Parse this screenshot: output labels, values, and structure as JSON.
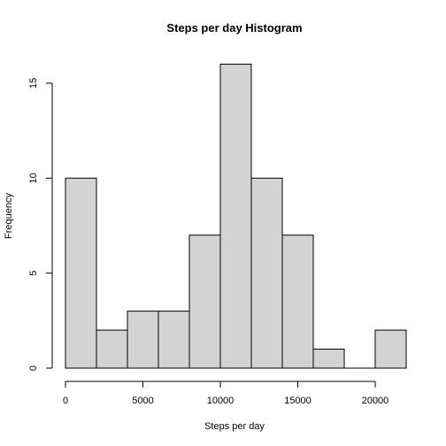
{
  "chart_data": {
    "type": "bar",
    "title": "Steps per day Histogram",
    "xlabel": "Steps per day",
    "ylabel": "Frequency",
    "bin_edges": [
      0,
      2000,
      4000,
      6000,
      8000,
      10000,
      12000,
      14000,
      16000,
      18000,
      20000,
      22000
    ],
    "values": [
      10,
      2,
      3,
      3,
      7,
      16,
      10,
      7,
      1,
      0,
      2
    ],
    "xlim": [
      0,
      22000
    ],
    "ylim": [
      0,
      16
    ],
    "x_ticks": [
      0,
      5000,
      10000,
      15000,
      20000
    ],
    "x_tick_labels": [
      "0",
      "5000",
      "10000",
      "15000",
      "20000"
    ],
    "y_ticks": [
      0,
      5,
      10,
      15
    ],
    "y_tick_labels": [
      "0",
      "5",
      "10",
      "15"
    ],
    "bar_fill": "#d3d3d3",
    "bar_stroke": "#000000",
    "grid": false
  }
}
